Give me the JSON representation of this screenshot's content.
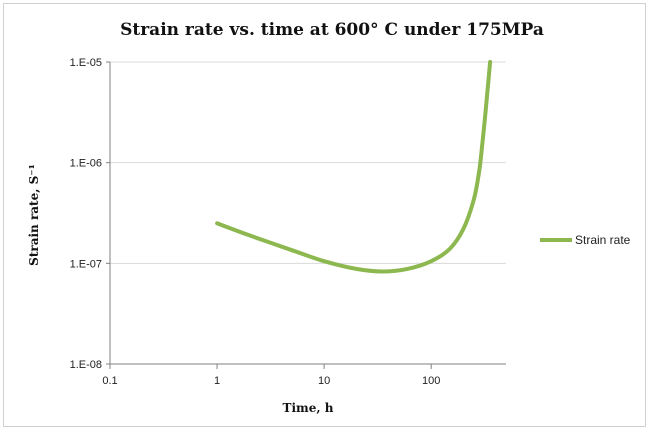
{
  "chart_data": {
    "type": "line",
    "title": "Strain rate vs. time at 600° C under 175MPa",
    "xlabel": "Time, h",
    "ylabel": "Strain rate, S⁻¹",
    "x_scale": "log",
    "y_scale": "log",
    "xlim": [
      0.1,
      500
    ],
    "ylim": [
      1e-08,
      1e-05
    ],
    "x_ticks": [
      0.1,
      1,
      10,
      100
    ],
    "x_tick_labels": [
      "0.1",
      "1",
      "10",
      "100"
    ],
    "y_ticks": [
      1e-08,
      1e-07,
      1e-06,
      1e-05
    ],
    "y_tick_labels": [
      "1.E-08",
      "1.E-07",
      "1.E-06",
      "1.E-05"
    ],
    "grid": "horizontal",
    "legend_position": "right",
    "series": [
      {
        "name": "Strain rate",
        "color": "#8cb84f",
        "x": [
          1,
          2,
          5,
          10,
          20,
          35,
          60,
          100,
          150,
          200,
          250,
          280,
          300,
          320,
          340,
          355
        ],
        "y": [
          2.5e-07,
          1.9e-07,
          1.35e-07,
          1.05e-07,
          8.8e-08,
          8.3e-08,
          8.8e-08,
          1.05e-07,
          1.4e-07,
          2.2e-07,
          4.3e-07,
          8e-07,
          1.5e-06,
          3e-06,
          6e-06,
          1e-05
        ]
      }
    ]
  }
}
